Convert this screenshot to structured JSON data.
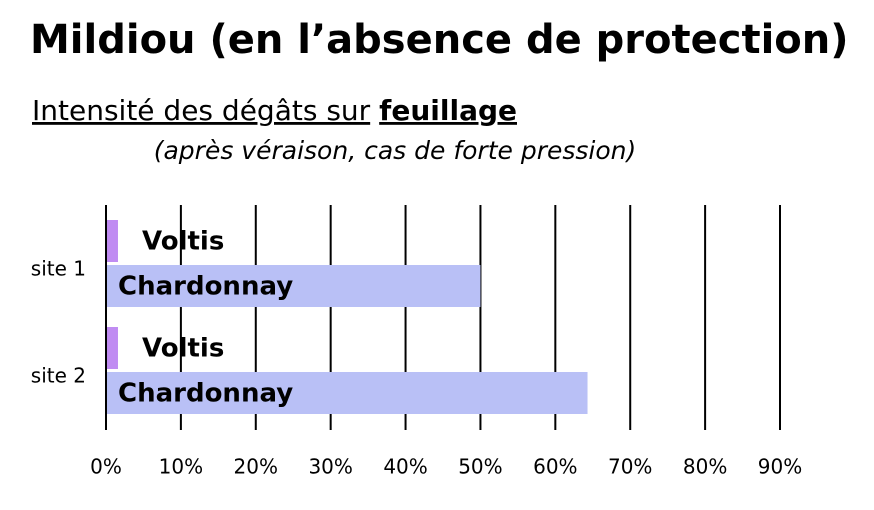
{
  "chart_data": {
    "type": "bar",
    "orientation": "horizontal",
    "title": "Mildiou (en l’absence de protection)",
    "subtitle": "Intensité des dégâts sur",
    "subtitle_emphasis": "feuillage",
    "note": "(après véraison, cas de forte pression)",
    "categories": [
      "site 1",
      "site 2"
    ],
    "series": [
      {
        "name": "Voltis",
        "color": "#c08cf2",
        "values": [
          1.6,
          1.6
        ]
      },
      {
        "name": "Chardonnay",
        "color": "#b9c0f6",
        "values": [
          50,
          64.3
        ]
      }
    ],
    "xlim": [
      0,
      90
    ],
    "xticks": [
      {
        "value": 0,
        "label": "0%"
      },
      {
        "value": 10,
        "label": "10%"
      },
      {
        "value": 20,
        "label": "20%"
      },
      {
        "value": 30,
        "label": "30%"
      },
      {
        "value": 40,
        "label": "40%"
      },
      {
        "value": 50,
        "label": "50%"
      },
      {
        "value": 60,
        "label": "60%"
      },
      {
        "value": 70,
        "label": "70%"
      },
      {
        "value": 80,
        "label": "80%"
      },
      {
        "value": 90,
        "label": "90%"
      }
    ],
    "grid": true,
    "title_color": "#3b8b2b"
  }
}
